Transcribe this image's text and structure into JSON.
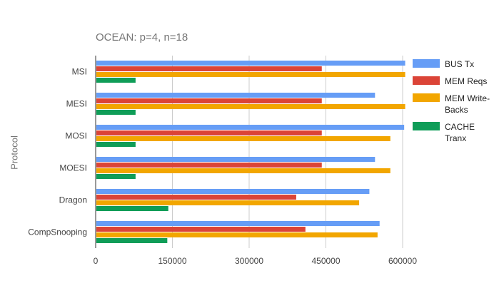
{
  "chart_data": {
    "type": "bar",
    "orientation": "horizontal",
    "title": "OCEAN: p=4, n=18",
    "xlabel": "",
    "ylabel": "Protocol",
    "categories": [
      "MSI",
      "MESI",
      "MOSI",
      "MOESI",
      "Dragon",
      "CompSnooping"
    ],
    "xlim": [
      0,
      600000
    ],
    "xticks": [
      0,
      150000,
      300000,
      450000,
      600000
    ],
    "grid": true,
    "legend_position": "right",
    "series": [
      {
        "name": "BUS Tx",
        "color": "#669df6",
        "values": [
          605000,
          546000,
          603000,
          546000,
          535000,
          555000
        ]
      },
      {
        "name": "MEM Reqs",
        "color": "#db4437",
        "values": [
          442000,
          442000,
          442000,
          442000,
          392000,
          410000
        ]
      },
      {
        "name": "MEM Write-Backs",
        "color": "#f2a600",
        "values": [
          605000,
          605000,
          576000,
          576000,
          515000,
          551000
        ]
      },
      {
        "name": "CACHE Tranx",
        "color": "#0f9d58",
        "values": [
          78000,
          78000,
          78000,
          78000,
          142000,
          140000
        ]
      }
    ]
  }
}
